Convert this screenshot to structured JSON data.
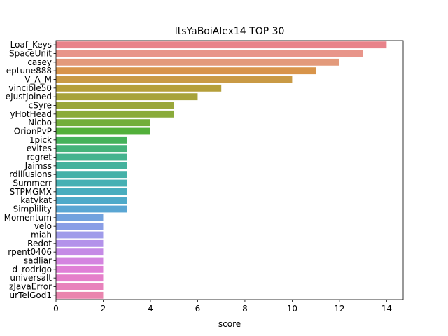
{
  "chart_data": {
    "type": "bar",
    "orientation": "horizontal",
    "title": "ItsYaBoiAlex14 TOP 30",
    "xlabel": "score",
    "ylabel": "",
    "xlim": [
      0,
      14.7
    ],
    "xticks": [
      0,
      2,
      4,
      6,
      8,
      10,
      12,
      14
    ],
    "grid": false,
    "categories": [
      "Loaf_Keys",
      "SpaceUnit",
      "casey",
      "eptune888",
      "V_A_M",
      "vincible50",
      "eJustJoined",
      "cSyre",
      "yHotHead",
      "Nicbo",
      "OrionPvP",
      "1pick",
      "evites",
      "rcgret",
      "Jaimss",
      "rdillusions",
      "Summerr",
      "STPMGMX",
      "katykat",
      "Simplility",
      "Momentum",
      "velo",
      "miah",
      "Redot",
      "rpent0406",
      "sadliar",
      "d_rodrigo",
      "universalt",
      "zJavaError",
      "urTelGod1"
    ],
    "values": [
      14,
      13,
      12,
      11,
      10,
      7,
      6,
      5,
      5,
      4,
      4,
      3,
      3,
      3,
      3,
      3,
      3,
      3,
      3,
      3,
      2,
      2,
      2,
      2,
      2,
      2,
      2,
      2,
      2,
      2
    ],
    "colors": [
      "#e8828a",
      "#e8958a",
      "#e39a7b",
      "#d8944a",
      "#c99a45",
      "#b59f3a",
      "#a7a33a",
      "#9aa73a",
      "#8aab3a",
      "#72ae3a",
      "#52b03a",
      "#45b25a",
      "#44b37a",
      "#44b38e",
      "#44b29d",
      "#44b1a8",
      "#45b0b3",
      "#48adbe",
      "#4eaac9",
      "#5aa6d3",
      "#72a2de",
      "#8a9ee6",
      "#9f9bea",
      "#b392ea",
      "#c58ae6",
      "#d484e0",
      "#e07fd6",
      "#e57fca",
      "#e882bc",
      "#ea85ae"
    ]
  }
}
